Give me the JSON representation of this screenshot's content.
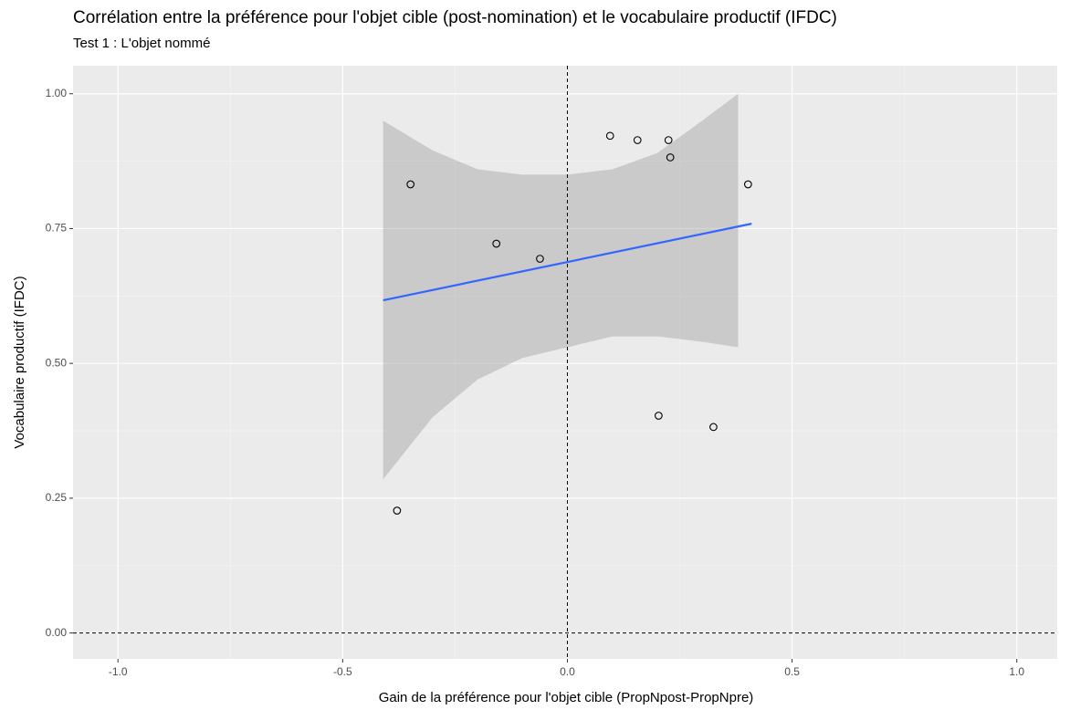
{
  "chart_data": {
    "type": "scatter",
    "title": "Corrélation entre la préférence pour l'objet cible (post-nomination) et le vocabulaire productif (IFDC)",
    "subtitle": "Test 1 : L'objet nommé",
    "x_label": "Gain de la préférence pour l'objet cible (PropNpost-PropNpre)",
    "y_label": "Vocabulaire productif (IFDC)",
    "x": [
      -0.379,
      -0.349,
      -0.158,
      -0.061,
      0.095,
      0.156,
      0.225,
      0.229,
      0.402,
      0.203,
      0.325
    ],
    "values": [
      0.227,
      0.832,
      0.722,
      0.694,
      0.922,
      0.914,
      0.914,
      0.882,
      0.832,
      0.403,
      0.382
    ],
    "color": "#000000",
    "fit": {
      "x": [
        -0.41,
        0.41
      ],
      "values": [
        0.617,
        0.759
      ],
      "color": "#3366FF"
    },
    "band": {
      "x": [
        -0.41,
        -0.3,
        -0.2,
        -0.1,
        0,
        0.1,
        0.2,
        0.3,
        0.38
      ],
      "upper": [
        0.95,
        0.895,
        0.86,
        0.85,
        0.85,
        0.86,
        0.89,
        0.95,
        1.0
      ],
      "lower": [
        0.285,
        0.4,
        0.47,
        0.51,
        0.53,
        0.55,
        0.55,
        0.54,
        0.53
      ],
      "color": "#999999"
    },
    "hline": 0,
    "vline": 0,
    "xlim": [
      -1.1,
      1.09
    ],
    "ylim": [
      -0.048,
      1.052
    ],
    "xticks": [
      {
        "value": -1,
        "label": "-1.0"
      },
      -0.5,
      {
        "value": 0,
        "label": "0.0"
      },
      0.5,
      {
        "value": 1,
        "label": "1.0"
      }
    ],
    "yticks": [
      {
        "value": 0,
        "label": "0.00"
      },
      0.25,
      {
        "value": 0.5,
        "label": "0.50"
      },
      0.75,
      {
        "value": 1,
        "label": "1.00"
      }
    ],
    "grid": true
  }
}
